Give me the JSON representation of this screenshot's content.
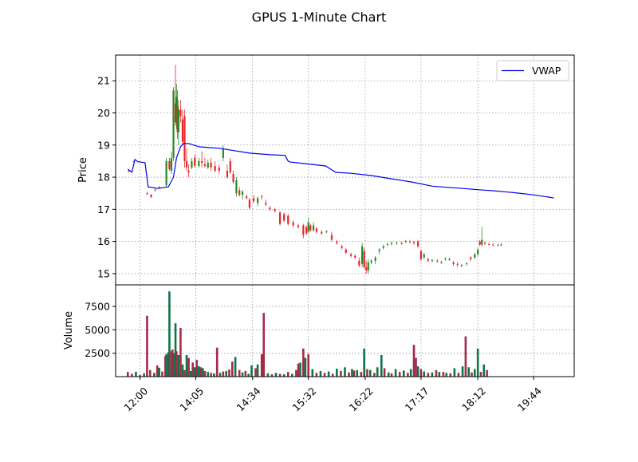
{
  "chart_data": {
    "type": "candlestick",
    "title": "GPUS 1-Minute Chart",
    "grid": true,
    "legend": {
      "placement": "upper-right",
      "entries": [
        "VWAP"
      ]
    },
    "colors": {
      "up": "#228B22",
      "down": "#E8252B",
      "vwap": "#0000EE",
      "volume_up": "#0D7446",
      "volume_down": "#A52A4A",
      "grid": "#999999"
    },
    "price_panel": {
      "ylabel": "Price",
      "ylim": [
        14.65,
        21.8
      ],
      "yticks": [
        15,
        16,
        17,
        18,
        19,
        20,
        21
      ]
    },
    "volume_panel": {
      "ylabel": "Volume",
      "ylim": [
        0,
        9800
      ],
      "yticks": [
        2500,
        5000,
        7500
      ]
    },
    "x_axis": {
      "xlim": [
        -12,
        440
      ],
      "tick_positions": [
        12,
        67,
        123,
        178,
        234,
        289,
        345,
        400
      ],
      "tick_labels": [
        "12:00",
        "14:05",
        "14:34",
        "15:32",
        "16:22",
        "17:17",
        "18:12",
        "19:44"
      ]
    },
    "vwap": {
      "name": "VWAP",
      "x": [
        0,
        4,
        7,
        10,
        17,
        20,
        30,
        40,
        45,
        48,
        52,
        55,
        60,
        70,
        80,
        90,
        100,
        120,
        140,
        155,
        158,
        160,
        175,
        195,
        200,
        205,
        220,
        240,
        260,
        280,
        300,
        330,
        350,
        360,
        380,
        400,
        410,
        415,
        420
      ],
      "y": [
        18.25,
        18.15,
        18.55,
        18.48,
        18.45,
        17.7,
        17.65,
        17.7,
        18.0,
        18.6,
        18.95,
        19.05,
        19.05,
        18.95,
        18.92,
        18.9,
        18.85,
        18.75,
        18.7,
        18.68,
        18.5,
        18.47,
        18.42,
        18.35,
        18.25,
        18.15,
        18.12,
        18.05,
        17.95,
        17.85,
        17.72,
        17.65,
        17.6,
        17.58,
        17.52,
        17.45,
        17.4,
        17.38,
        17.35
      ]
    },
    "candles": [
      [
        1,
        18.2,
        18.22,
        18.15,
        18.18
      ],
      [
        6,
        18.5,
        18.52,
        18.45,
        18.48
      ],
      [
        19,
        17.5,
        17.55,
        17.45,
        17.48
      ],
      [
        23,
        17.45,
        17.48,
        17.35,
        17.38
      ],
      [
        27,
        17.6,
        17.65,
        17.55,
        17.62
      ],
      [
        31,
        17.7,
        17.72,
        17.65,
        17.68
      ],
      [
        38,
        17.75,
        18.6,
        17.7,
        18.5
      ],
      [
        41,
        18.5,
        18.6,
        18.2,
        18.25
      ],
      [
        43,
        18.2,
        18.8,
        18.1,
        18.6
      ],
      [
        45,
        18.6,
        20.8,
        18.5,
        20.7
      ],
      [
        47,
        20.3,
        21.5,
        19.6,
        19.7
      ],
      [
        48,
        19.7,
        20.9,
        19.5,
        20.5
      ],
      [
        49,
        20.2,
        20.7,
        19.2,
        19.4
      ],
      [
        50,
        19.4,
        20.4,
        19.0,
        20.1
      ],
      [
        52,
        20.1,
        20.4,
        19.7,
        19.9
      ],
      [
        54,
        19.8,
        20.1,
        19.0,
        19.1
      ],
      [
        56,
        19.9,
        20.1,
        18.3,
        18.5
      ],
      [
        58,
        18.5,
        18.9,
        18.2,
        18.3
      ],
      [
        60,
        18.2,
        18.4,
        18.0,
        18.15
      ],
      [
        63,
        18.3,
        18.6,
        18.25,
        18.5
      ],
      [
        66,
        18.6,
        18.7,
        18.3,
        18.35
      ],
      [
        70,
        18.35,
        18.6,
        18.3,
        18.5
      ],
      [
        73,
        18.5,
        18.8,
        18.3,
        18.45
      ],
      [
        76,
        18.4,
        18.6,
        18.3,
        18.35
      ],
      [
        79,
        18.3,
        18.55,
        18.25,
        18.45
      ],
      [
        82,
        18.45,
        18.6,
        18.2,
        18.3
      ],
      [
        86,
        18.35,
        18.5,
        18.15,
        18.2
      ],
      [
        90,
        18.3,
        18.4,
        18.1,
        18.2
      ],
      [
        94,
        18.6,
        19.0,
        18.5,
        18.9
      ],
      [
        98,
        18.2,
        18.4,
        17.95,
        18.0
      ],
      [
        101,
        18.5,
        18.6,
        18.1,
        18.15
      ],
      [
        104,
        18.1,
        18.2,
        17.8,
        17.85
      ],
      [
        107,
        17.5,
        18.0,
        17.4,
        17.9
      ],
      [
        110,
        17.6,
        17.7,
        17.4,
        17.45
      ],
      [
        113,
        17.45,
        17.6,
        17.3,
        17.55
      ],
      [
        117,
        17.4,
        17.45,
        17.3,
        17.35
      ],
      [
        120,
        17.3,
        17.35,
        17.0,
        17.05
      ],
      [
        124,
        17.35,
        17.45,
        17.2,
        17.25
      ],
      [
        128,
        17.2,
        17.4,
        17.1,
        17.35
      ],
      [
        132,
        17.4,
        17.45,
        17.3,
        17.38
      ],
      [
        136,
        17.2,
        17.3,
        17.1,
        17.15
      ],
      [
        140,
        17.05,
        17.1,
        16.95,
        17.0
      ],
      [
        145,
        17.0,
        17.05,
        16.9,
        16.95
      ],
      [
        150,
        16.9,
        16.95,
        16.5,
        16.55
      ],
      [
        154,
        16.85,
        16.9,
        16.6,
        16.65
      ],
      [
        158,
        16.8,
        16.85,
        16.5,
        16.55
      ],
      [
        163,
        16.6,
        16.65,
        16.45,
        16.5
      ],
      [
        168,
        16.5,
        16.55,
        16.4,
        16.45
      ],
      [
        173,
        16.5,
        16.55,
        16.1,
        16.2
      ],
      [
        176,
        16.45,
        16.5,
        16.2,
        16.25
      ],
      [
        178,
        16.3,
        16.75,
        16.25,
        16.6
      ],
      [
        180,
        16.5,
        16.55,
        16.3,
        16.35
      ],
      [
        183,
        16.35,
        16.6,
        16.3,
        16.5
      ],
      [
        186,
        16.4,
        16.45,
        16.25,
        16.3
      ],
      [
        191,
        16.3,
        16.35,
        16.2,
        16.25
      ],
      [
        196,
        16.3,
        16.35,
        16.25,
        16.32
      ],
      [
        201,
        16.2,
        16.3,
        16.0,
        16.05
      ],
      [
        206,
        16.0,
        16.05,
        15.9,
        15.95
      ],
      [
        211,
        15.85,
        15.9,
        15.75,
        15.8
      ],
      [
        215,
        15.75,
        15.8,
        15.6,
        15.65
      ],
      [
        220,
        15.6,
        15.65,
        15.5,
        15.55
      ],
      [
        224,
        15.55,
        15.6,
        15.45,
        15.5
      ],
      [
        228,
        15.4,
        15.5,
        15.2,
        15.25
      ],
      [
        231,
        15.3,
        15.95,
        15.2,
        15.85
      ],
      [
        233,
        15.7,
        15.8,
        15.15,
        15.2
      ],
      [
        235,
        15.2,
        15.4,
        15.0,
        15.1
      ],
      [
        237,
        15.1,
        15.45,
        15.0,
        15.35
      ],
      [
        240,
        15.35,
        15.45,
        15.3,
        15.4
      ],
      [
        244,
        15.4,
        15.55,
        15.3,
        15.5
      ],
      [
        248,
        15.7,
        15.8,
        15.6,
        15.75
      ],
      [
        252,
        15.8,
        15.9,
        15.75,
        15.85
      ],
      [
        256,
        15.9,
        15.95,
        15.85,
        15.92
      ],
      [
        260,
        15.92,
        16.0,
        15.88,
        15.95
      ],
      [
        265,
        15.95,
        16.0,
        15.9,
        15.97
      ],
      [
        270,
        15.95,
        16.0,
        15.9,
        15.93
      ],
      [
        274,
        16.0,
        16.05,
        15.95,
        16.02
      ],
      [
        278,
        16.0,
        16.05,
        15.95,
        15.98
      ],
      [
        282,
        15.98,
        16.02,
        15.9,
        15.95
      ],
      [
        286,
        16.0,
        16.05,
        15.8,
        15.85
      ],
      [
        289,
        15.7,
        15.75,
        15.4,
        15.45
      ],
      [
        292,
        15.5,
        15.65,
        15.45,
        15.6
      ],
      [
        296,
        15.45,
        15.5,
        15.35,
        15.4
      ],
      [
        300,
        15.4,
        15.45,
        15.35,
        15.42
      ],
      [
        305,
        15.4,
        15.45,
        15.35,
        15.38
      ],
      [
        309,
        15.35,
        15.4,
        15.3,
        15.36
      ],
      [
        313,
        15.45,
        15.5,
        15.4,
        15.48
      ],
      [
        317,
        15.45,
        15.5,
        15.4,
        15.42
      ],
      [
        321,
        15.35,
        15.4,
        15.25,
        15.3
      ],
      [
        325,
        15.3,
        15.35,
        15.2,
        15.28
      ],
      [
        329,
        15.25,
        15.3,
        15.2,
        15.27
      ],
      [
        334,
        15.3,
        15.35,
        15.25,
        15.32
      ],
      [
        338,
        15.5,
        15.55,
        15.4,
        15.45
      ],
      [
        342,
        15.5,
        15.65,
        15.45,
        15.6
      ],
      [
        345,
        15.6,
        15.8,
        15.55,
        15.75
      ],
      [
        347,
        16.0,
        16.05,
        15.85,
        15.9
      ],
      [
        349,
        15.9,
        16.45,
        15.85,
        16.05
      ],
      [
        352,
        15.95,
        16.0,
        15.9,
        15.92
      ],
      [
        356,
        15.92,
        15.96,
        15.88,
        15.9
      ],
      [
        360,
        15.9,
        15.95,
        15.85,
        15.88
      ],
      [
        365,
        15.88,
        15.92,
        15.85,
        15.9
      ],
      [
        368,
        15.9,
        15.95,
        15.86,
        15.88
      ]
    ],
    "volume": [
      [
        0,
        500,
        0
      ],
      [
        4,
        300,
        0
      ],
      [
        8,
        520,
        1
      ],
      [
        12,
        180,
        0
      ],
      [
        16,
        350,
        1
      ],
      [
        19,
        6500,
        0
      ],
      [
        22,
        700,
        0
      ],
      [
        26,
        400,
        1
      ],
      [
        29,
        1200,
        0
      ],
      [
        31,
        950,
        1
      ],
      [
        34,
        550,
        0
      ],
      [
        37,
        2200,
        0
      ],
      [
        38,
        2400,
        1
      ],
      [
        40,
        2600,
        0
      ],
      [
        41,
        9100,
        1
      ],
      [
        43,
        2700,
        0
      ],
      [
        44,
        2900,
        0
      ],
      [
        46,
        2500,
        1
      ],
      [
        47,
        5700,
        1
      ],
      [
        48,
        2700,
        0
      ],
      [
        50,
        2300,
        1
      ],
      [
        52,
        5200,
        0
      ],
      [
        54,
        1300,
        1
      ],
      [
        56,
        700,
        0
      ],
      [
        58,
        2300,
        1
      ],
      [
        60,
        2000,
        0
      ],
      [
        62,
        600,
        1
      ],
      [
        64,
        1500,
        0
      ],
      [
        66,
        1000,
        1
      ],
      [
        68,
        1800,
        0
      ],
      [
        70,
        1100,
        1
      ],
      [
        72,
        1000,
        0
      ],
      [
        74,
        900,
        1
      ],
      [
        76,
        600,
        0
      ],
      [
        79,
        500,
        1
      ],
      [
        82,
        400,
        0
      ],
      [
        85,
        350,
        1
      ],
      [
        88,
        3100,
        0
      ],
      [
        91,
        400,
        1
      ],
      [
        94,
        550,
        0
      ],
      [
        97,
        600,
        1
      ],
      [
        100,
        750,
        0
      ],
      [
        103,
        1600,
        0
      ],
      [
        106,
        2100,
        1
      ],
      [
        110,
        700,
        0
      ],
      [
        113,
        450,
        1
      ],
      [
        116,
        600,
        0
      ],
      [
        119,
        300,
        1
      ],
      [
        122,
        1200,
        1
      ],
      [
        126,
        900,
        0
      ],
      [
        128,
        1300,
        1
      ],
      [
        132,
        2400,
        0
      ],
      [
        134,
        6800,
        0
      ],
      [
        138,
        350,
        1
      ],
      [
        142,
        250,
        0
      ],
      [
        146,
        400,
        1
      ],
      [
        150,
        300,
        0
      ],
      [
        154,
        250,
        1
      ],
      [
        158,
        500,
        0
      ],
      [
        162,
        300,
        1
      ],
      [
        166,
        700,
        0
      ],
      [
        168,
        1400,
        0
      ],
      [
        170,
        1500,
        1
      ],
      [
        173,
        3000,
        0
      ],
      [
        175,
        2000,
        1
      ],
      [
        178,
        2400,
        0
      ],
      [
        182,
        800,
        1
      ],
      [
        186,
        400,
        0
      ],
      [
        190,
        600,
        1
      ],
      [
        194,
        400,
        0
      ],
      [
        198,
        550,
        1
      ],
      [
        202,
        300,
        0
      ],
      [
        206,
        850,
        1
      ],
      [
        210,
        600,
        0
      ],
      [
        214,
        1000,
        1
      ],
      [
        218,
        450,
        0
      ],
      [
        221,
        800,
        1
      ],
      [
        223,
        650,
        0
      ],
      [
        226,
        700,
        1
      ],
      [
        230,
        500,
        0
      ],
      [
        233,
        3000,
        1
      ],
      [
        236,
        800,
        0
      ],
      [
        239,
        700,
        1
      ],
      [
        243,
        400,
        0
      ],
      [
        246,
        1000,
        1
      ],
      [
        250,
        2300,
        1
      ],
      [
        253,
        900,
        0
      ],
      [
        257,
        450,
        1
      ],
      [
        260,
        350,
        0
      ],
      [
        264,
        800,
        1
      ],
      [
        268,
        500,
        0
      ],
      [
        272,
        650,
        1
      ],
      [
        276,
        400,
        0
      ],
      [
        279,
        800,
        1
      ],
      [
        282,
        3400,
        0
      ],
      [
        284,
        2000,
        0
      ],
      [
        286,
        1100,
        1
      ],
      [
        289,
        800,
        0
      ],
      [
        292,
        550,
        1
      ],
      [
        296,
        400,
        0
      ],
      [
        300,
        450,
        1
      ],
      [
        304,
        700,
        0
      ],
      [
        307,
        500,
        1
      ],
      [
        311,
        500,
        0
      ],
      [
        314,
        400,
        1
      ],
      [
        318,
        350,
        0
      ],
      [
        322,
        900,
        1
      ],
      [
        326,
        400,
        0
      ],
      [
        330,
        1100,
        1
      ],
      [
        333,
        4300,
        0
      ],
      [
        336,
        1000,
        1
      ],
      [
        339,
        450,
        0
      ],
      [
        342,
        800,
        1
      ],
      [
        345,
        3000,
        1
      ],
      [
        348,
        500,
        0
      ],
      [
        351,
        1300,
        1
      ],
      [
        354,
        700,
        0
      ]
    ]
  }
}
